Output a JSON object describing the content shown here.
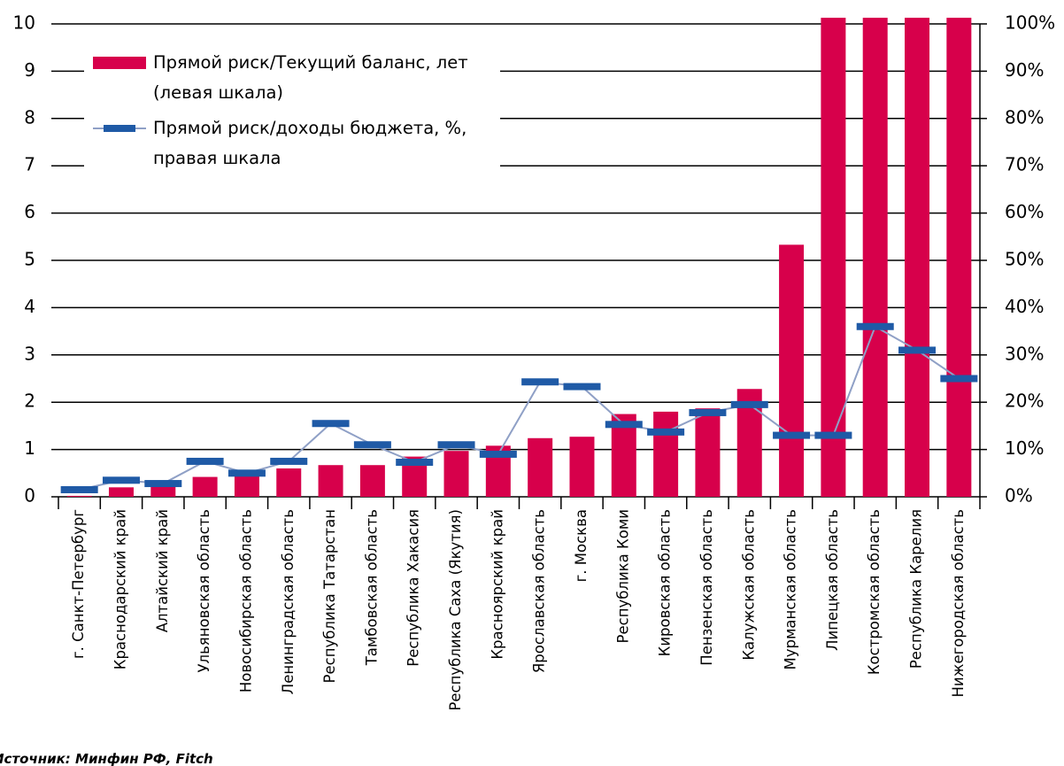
{
  "chart_data": {
    "type": "bar-line",
    "categories": [
      "г. Санкт-Петербург",
      "Краснодарский край",
      "Алтайский край",
      "Ульяновская область",
      "Новосибирская область",
      "Ленинградская область",
      "Республика Татарстан",
      "Тамбовская область",
      "Республика Хакасия",
      "Республика Саха (Якутия)",
      "Красноярский край",
      "Ярославская область",
      "г. Москва",
      "Республика Коми",
      "Кировская область",
      "Пензенская область",
      "Калужская область",
      "Мурманская область",
      "Липецкая область",
      "Костромская область",
      "Республика Карелия",
      "Нижегородская область"
    ],
    "series": [
      {
        "name": "Прямой риск/Текущий баланс, лет (левая шкала)",
        "color": "#d7004b",
        "values": [
          0.02,
          0.2,
          0.25,
          0.42,
          0.5,
          0.6,
          0.67,
          0.67,
          0.85,
          0.97,
          1.08,
          1.24,
          1.27,
          1.75,
          1.8,
          1.87,
          2.28,
          5.33,
          10.13,
          10.13,
          10.13,
          10.13
        ]
      },
      {
        "name": "Прямой риск/доходы бюджета, %, правая шкала",
        "color": "#8fa0c6",
        "marker_color": "#1f5aa6",
        "axis": "y2",
        "values": [
          1.5,
          3.5,
          2.8,
          7.5,
          5,
          7.5,
          15.5,
          11,
          7.3,
          11,
          9,
          24.3,
          23.3,
          15.3,
          13.7,
          17.8,
          19.5,
          13,
          13,
          36,
          31,
          25
        ]
      }
    ],
    "ylim": [
      0,
      10
    ],
    "yticks": [
      0,
      1,
      2,
      3,
      4,
      5,
      6,
      7,
      8,
      9,
      10
    ],
    "y2lim": [
      0,
      100
    ],
    "y2ticks": [
      {
        "value": 0,
        "label": "0%"
      },
      {
        "value": 10,
        "label": "10%"
      },
      {
        "value": 20,
        "label": "20%"
      },
      {
        "value": 30,
        "label": "30%"
      },
      {
        "value": 40,
        "label": "40%"
      },
      {
        "value": 50,
        "label": "50%"
      },
      {
        "value": 60,
        "label": "60%"
      },
      {
        "value": 70,
        "label": "70%"
      },
      {
        "value": 80,
        "label": "80%"
      },
      {
        "value": 90,
        "label": "90%"
      },
      {
        "value": 100,
        "label": "100%"
      }
    ],
    "grid": true,
    "legend": "upper left",
    "note": "Источник: Минфин РФ, Fitch"
  }
}
